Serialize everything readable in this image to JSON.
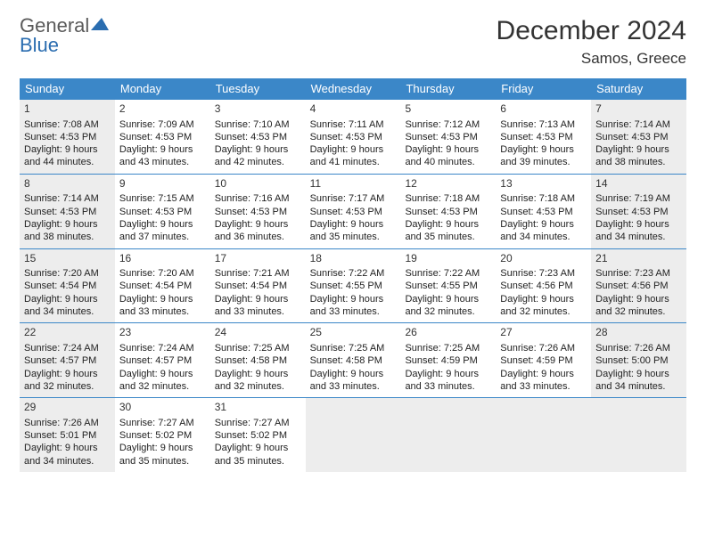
{
  "logo": {
    "word1": "General",
    "word2": "Blue"
  },
  "title": "December 2024",
  "location": "Samos, Greece",
  "colors": {
    "header_bg": "#3b87c8",
    "header_text": "#ffffff",
    "border": "#3b87c8",
    "shaded_bg": "#ededed",
    "text": "#222222",
    "logo_gray": "#5a5a5a",
    "logo_blue": "#2a6db0"
  },
  "dayNames": [
    "Sunday",
    "Monday",
    "Tuesday",
    "Wednesday",
    "Thursday",
    "Friday",
    "Saturday"
  ],
  "weeks": [
    [
      {
        "d": "1",
        "shaded": true,
        "sr": "Sunrise: 7:08 AM",
        "ss": "Sunset: 4:53 PM",
        "dl1": "Daylight: 9 hours",
        "dl2": "and 44 minutes."
      },
      {
        "d": "2",
        "shaded": false,
        "sr": "Sunrise: 7:09 AM",
        "ss": "Sunset: 4:53 PM",
        "dl1": "Daylight: 9 hours",
        "dl2": "and 43 minutes."
      },
      {
        "d": "3",
        "shaded": false,
        "sr": "Sunrise: 7:10 AM",
        "ss": "Sunset: 4:53 PM",
        "dl1": "Daylight: 9 hours",
        "dl2": "and 42 minutes."
      },
      {
        "d": "4",
        "shaded": false,
        "sr": "Sunrise: 7:11 AM",
        "ss": "Sunset: 4:53 PM",
        "dl1": "Daylight: 9 hours",
        "dl2": "and 41 minutes."
      },
      {
        "d": "5",
        "shaded": false,
        "sr": "Sunrise: 7:12 AM",
        "ss": "Sunset: 4:53 PM",
        "dl1": "Daylight: 9 hours",
        "dl2": "and 40 minutes."
      },
      {
        "d": "6",
        "shaded": false,
        "sr": "Sunrise: 7:13 AM",
        "ss": "Sunset: 4:53 PM",
        "dl1": "Daylight: 9 hours",
        "dl2": "and 39 minutes."
      },
      {
        "d": "7",
        "shaded": true,
        "sr": "Sunrise: 7:14 AM",
        "ss": "Sunset: 4:53 PM",
        "dl1": "Daylight: 9 hours",
        "dl2": "and 38 minutes."
      }
    ],
    [
      {
        "d": "8",
        "shaded": true,
        "sr": "Sunrise: 7:14 AM",
        "ss": "Sunset: 4:53 PM",
        "dl1": "Daylight: 9 hours",
        "dl2": "and 38 minutes."
      },
      {
        "d": "9",
        "shaded": false,
        "sr": "Sunrise: 7:15 AM",
        "ss": "Sunset: 4:53 PM",
        "dl1": "Daylight: 9 hours",
        "dl2": "and 37 minutes."
      },
      {
        "d": "10",
        "shaded": false,
        "sr": "Sunrise: 7:16 AM",
        "ss": "Sunset: 4:53 PM",
        "dl1": "Daylight: 9 hours",
        "dl2": "and 36 minutes."
      },
      {
        "d": "11",
        "shaded": false,
        "sr": "Sunrise: 7:17 AM",
        "ss": "Sunset: 4:53 PM",
        "dl1": "Daylight: 9 hours",
        "dl2": "and 35 minutes."
      },
      {
        "d": "12",
        "shaded": false,
        "sr": "Sunrise: 7:18 AM",
        "ss": "Sunset: 4:53 PM",
        "dl1": "Daylight: 9 hours",
        "dl2": "and 35 minutes."
      },
      {
        "d": "13",
        "shaded": false,
        "sr": "Sunrise: 7:18 AM",
        "ss": "Sunset: 4:53 PM",
        "dl1": "Daylight: 9 hours",
        "dl2": "and 34 minutes."
      },
      {
        "d": "14",
        "shaded": true,
        "sr": "Sunrise: 7:19 AM",
        "ss": "Sunset: 4:53 PM",
        "dl1": "Daylight: 9 hours",
        "dl2": "and 34 minutes."
      }
    ],
    [
      {
        "d": "15",
        "shaded": true,
        "sr": "Sunrise: 7:20 AM",
        "ss": "Sunset: 4:54 PM",
        "dl1": "Daylight: 9 hours",
        "dl2": "and 34 minutes."
      },
      {
        "d": "16",
        "shaded": false,
        "sr": "Sunrise: 7:20 AM",
        "ss": "Sunset: 4:54 PM",
        "dl1": "Daylight: 9 hours",
        "dl2": "and 33 minutes."
      },
      {
        "d": "17",
        "shaded": false,
        "sr": "Sunrise: 7:21 AM",
        "ss": "Sunset: 4:54 PM",
        "dl1": "Daylight: 9 hours",
        "dl2": "and 33 minutes."
      },
      {
        "d": "18",
        "shaded": false,
        "sr": "Sunrise: 7:22 AM",
        "ss": "Sunset: 4:55 PM",
        "dl1": "Daylight: 9 hours",
        "dl2": "and 33 minutes."
      },
      {
        "d": "19",
        "shaded": false,
        "sr": "Sunrise: 7:22 AM",
        "ss": "Sunset: 4:55 PM",
        "dl1": "Daylight: 9 hours",
        "dl2": "and 32 minutes."
      },
      {
        "d": "20",
        "shaded": false,
        "sr": "Sunrise: 7:23 AM",
        "ss": "Sunset: 4:56 PM",
        "dl1": "Daylight: 9 hours",
        "dl2": "and 32 minutes."
      },
      {
        "d": "21",
        "shaded": true,
        "sr": "Sunrise: 7:23 AM",
        "ss": "Sunset: 4:56 PM",
        "dl1": "Daylight: 9 hours",
        "dl2": "and 32 minutes."
      }
    ],
    [
      {
        "d": "22",
        "shaded": true,
        "sr": "Sunrise: 7:24 AM",
        "ss": "Sunset: 4:57 PM",
        "dl1": "Daylight: 9 hours",
        "dl2": "and 32 minutes."
      },
      {
        "d": "23",
        "shaded": false,
        "sr": "Sunrise: 7:24 AM",
        "ss": "Sunset: 4:57 PM",
        "dl1": "Daylight: 9 hours",
        "dl2": "and 32 minutes."
      },
      {
        "d": "24",
        "shaded": false,
        "sr": "Sunrise: 7:25 AM",
        "ss": "Sunset: 4:58 PM",
        "dl1": "Daylight: 9 hours",
        "dl2": "and 32 minutes."
      },
      {
        "d": "25",
        "shaded": false,
        "sr": "Sunrise: 7:25 AM",
        "ss": "Sunset: 4:58 PM",
        "dl1": "Daylight: 9 hours",
        "dl2": "and 33 minutes."
      },
      {
        "d": "26",
        "shaded": false,
        "sr": "Sunrise: 7:25 AM",
        "ss": "Sunset: 4:59 PM",
        "dl1": "Daylight: 9 hours",
        "dl2": "and 33 minutes."
      },
      {
        "d": "27",
        "shaded": false,
        "sr": "Sunrise: 7:26 AM",
        "ss": "Sunset: 4:59 PM",
        "dl1": "Daylight: 9 hours",
        "dl2": "and 33 minutes."
      },
      {
        "d": "28",
        "shaded": true,
        "sr": "Sunrise: 7:26 AM",
        "ss": "Sunset: 5:00 PM",
        "dl1": "Daylight: 9 hours",
        "dl2": "and 34 minutes."
      }
    ],
    [
      {
        "d": "29",
        "shaded": true,
        "sr": "Sunrise: 7:26 AM",
        "ss": "Sunset: 5:01 PM",
        "dl1": "Daylight: 9 hours",
        "dl2": "and 34 minutes."
      },
      {
        "d": "30",
        "shaded": false,
        "sr": "Sunrise: 7:27 AM",
        "ss": "Sunset: 5:02 PM",
        "dl1": "Daylight: 9 hours",
        "dl2": "and 35 minutes."
      },
      {
        "d": "31",
        "shaded": false,
        "sr": "Sunrise: 7:27 AM",
        "ss": "Sunset: 5:02 PM",
        "dl1": "Daylight: 9 hours",
        "dl2": "and 35 minutes."
      },
      {
        "empty": true,
        "shaded": true
      },
      {
        "empty": true,
        "shaded": true
      },
      {
        "empty": true,
        "shaded": true
      },
      {
        "empty": true,
        "shaded": true
      }
    ]
  ]
}
